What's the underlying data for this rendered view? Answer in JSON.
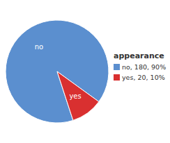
{
  "chart_data": {
    "type": "pie",
    "title": "appearance",
    "categories": [
      "no, 180, 90%",
      "yes, 20, 10%"
    ],
    "values": [
      180,
      20
    ],
    "colors": [
      "#5b8fcf",
      "#d93030"
    ],
    "annotations": [
      "no",
      "yes"
    ],
    "legend": "right"
  }
}
